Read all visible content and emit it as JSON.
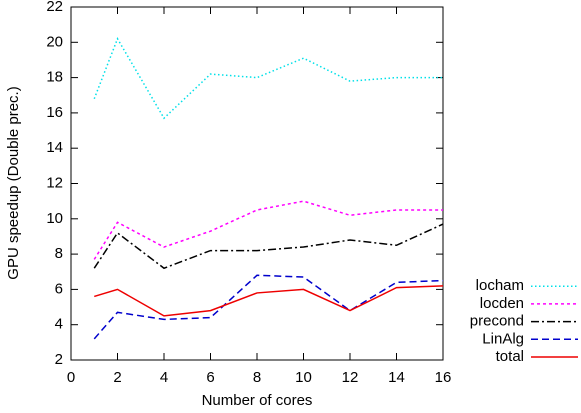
{
  "chart_data": {
    "type": "line",
    "x_label": "Number of cores",
    "y_label": "GPU speedup (Double prec.)",
    "x": [
      1,
      2,
      4,
      6,
      8,
      10,
      12,
      14,
      16
    ],
    "xlim": [
      0,
      16
    ],
    "ylim": [
      2,
      22
    ],
    "xticks": [
      0,
      2,
      4,
      6,
      8,
      10,
      12,
      14,
      16
    ],
    "yticks": [
      2,
      4,
      6,
      8,
      10,
      12,
      14,
      16,
      18,
      20,
      22
    ],
    "legend": "outside-right-bottom",
    "series": [
      {
        "name": "locham",
        "color": "#00e0e8",
        "dash": "1.5,2.5",
        "values": [
          16.8,
          20.2,
          15.7,
          18.2,
          18.0,
          19.1,
          17.8,
          18.0,
          18.0
        ]
      },
      {
        "name": "locden",
        "color": "#ff00ff",
        "dash": "3,3",
        "values": [
          7.7,
          9.8,
          8.4,
          9.3,
          10.5,
          11.0,
          10.2,
          10.5,
          10.5
        ]
      },
      {
        "name": "precond",
        "color": "#000000",
        "dash": "8,3,2,3",
        "values": [
          7.2,
          9.2,
          7.2,
          8.2,
          8.2,
          8.4,
          8.8,
          8.5,
          9.7
        ]
      },
      {
        "name": "LinAlg",
        "color": "#0000cc",
        "dash": "7,4",
        "values": [
          3.2,
          4.7,
          4.3,
          4.4,
          6.8,
          6.7,
          4.8,
          6.4,
          6.5
        ]
      },
      {
        "name": "total",
        "color": "#ee0000",
        "dash": "",
        "values": [
          5.6,
          6.0,
          4.5,
          4.8,
          5.8,
          6.0,
          4.8,
          6.1,
          6.2
        ]
      }
    ]
  }
}
